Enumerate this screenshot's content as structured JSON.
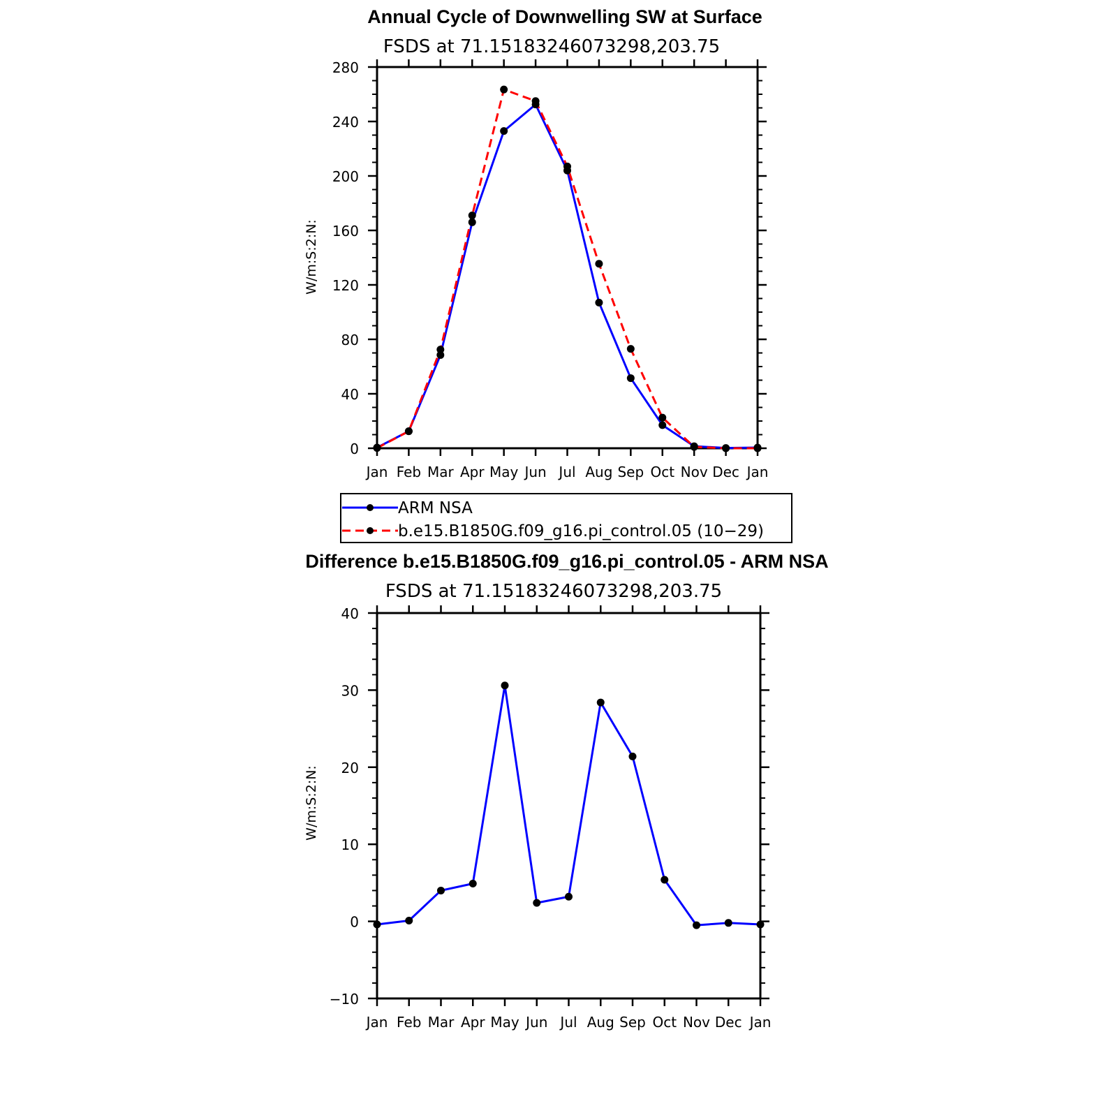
{
  "chart_data": [
    {
      "type": "line",
      "title": "Annual Cycle of Downwelling SW at Surface",
      "subtitle": "FSDS at 71.15183246073298,203.75",
      "ylabel": "W/m:S:2:N:",
      "xlabel": "",
      "categories": [
        "Jan",
        "Feb",
        "Mar",
        "Apr",
        "May",
        "Jun",
        "Jul",
        "Aug",
        "Sep",
        "Oct",
        "Nov",
        "Dec",
        "Jan"
      ],
      "ylim": [
        0,
        280
      ],
      "yticks": [
        0,
        40,
        80,
        120,
        160,
        200,
        240,
        280
      ],
      "grid": false,
      "legend_position": "below",
      "series": [
        {
          "name": "ARM NSA",
          "color": "#0000ff",
          "dash": "solid",
          "values": [
            0.5,
            12.5,
            68.5,
            166,
            233,
            252.5,
            204,
            107,
            51.5,
            17,
            1.5,
            0.2,
            0.5
          ]
        },
        {
          "name": "b.e15.B1850G.f09_g16.pi_control.05 (10−29)",
          "color": "#ff0000",
          "dash": "dashed",
          "values": [
            0.2,
            12.5,
            72.5,
            171,
            263.5,
            255,
            207,
            135.5,
            73,
            22.5,
            1,
            0,
            0
          ]
        }
      ]
    },
    {
      "type": "line",
      "title": "Difference b.e15.B1850G.f09_g16.pi_control.05 - ARM NSA",
      "subtitle": "FSDS at 71.15183246073298,203.75",
      "ylabel": "W/m:S:2:N:",
      "xlabel": "",
      "categories": [
        "Jan",
        "Feb",
        "Mar",
        "Apr",
        "May",
        "Jun",
        "Jul",
        "Aug",
        "Sep",
        "Oct",
        "Nov",
        "Dec",
        "Jan"
      ],
      "ylim": [
        -10,
        40
      ],
      "yticks": [
        -10,
        0,
        10,
        20,
        30,
        40
      ],
      "grid": false,
      "series": [
        {
          "color": "#0000ff",
          "dash": "solid",
          "values": [
            -0.4,
            0.1,
            4.0,
            4.9,
            30.6,
            2.4,
            3.2,
            28.4,
            21.4,
            5.4,
            -0.5,
            -0.2,
            -0.4
          ]
        }
      ]
    }
  ]
}
